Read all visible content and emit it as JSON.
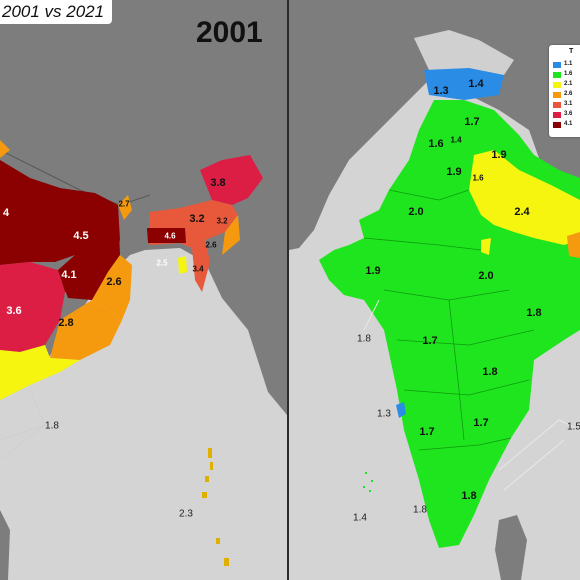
{
  "title": "2001 vs 2021",
  "left_map": {
    "year": "2001",
    "labels": [
      {
        "text": "4",
        "name": "left-edge-label"
      },
      {
        "text": "4.5",
        "name": "bihar-label"
      },
      {
        "text": "4.1",
        "name": "jharkhand-label"
      },
      {
        "text": "3.6",
        "name": "chhattisgarh-label"
      },
      {
        "text": "2.6",
        "name": "west-bengal-label"
      },
      {
        "text": "2.8",
        "name": "odisha-label"
      },
      {
        "text": "2.7",
        "name": "sikkim-label"
      },
      {
        "text": "3.8",
        "name": "arunachal-label"
      },
      {
        "text": "3.2",
        "name": "assam-label"
      },
      {
        "text": "3.2",
        "name": "nagaland-label"
      },
      {
        "text": "4.6",
        "name": "meghalaya-label"
      },
      {
        "text": "2.6",
        "name": "manipur-label"
      },
      {
        "text": "2.5",
        "name": "tripura-label"
      },
      {
        "text": "3.4",
        "name": "mizoram-label"
      },
      {
        "text": "1.8",
        "name": "kerala-callout-label"
      },
      {
        "text": "2.3",
        "name": "andaman-label"
      }
    ]
  },
  "right_map": {
    "labels": [
      {
        "text": "1.3",
        "name": "ladakh-west-label"
      },
      {
        "text": "1.4",
        "name": "ladakh-east-label"
      },
      {
        "text": "1.7",
        "name": "himachal-label"
      },
      {
        "text": "1.6",
        "name": "punjab-label"
      },
      {
        "text": "1.4",
        "name": "chandigarh-label"
      },
      {
        "text": "1.9",
        "name": "uttarakhand-label"
      },
      {
        "text": "1.9",
        "name": "haryana-label"
      },
      {
        "text": "1.6",
        "name": "delhi-label"
      },
      {
        "text": "2.0",
        "name": "rajasthan-label"
      },
      {
        "text": "2.4",
        "name": "uttar-pradesh-label"
      },
      {
        "text": "1.9",
        "name": "gujarat-label"
      },
      {
        "text": "2.0",
        "name": "madhya-pradesh-label"
      },
      {
        "text": "1.8",
        "name": "chhattisgarh-2021-label"
      },
      {
        "text": "1.8",
        "name": "dnh-callout-label"
      },
      {
        "text": "1.7",
        "name": "maharashtra-label"
      },
      {
        "text": "1.8",
        "name": "telangana-label"
      },
      {
        "text": "1.3",
        "name": "goa-label"
      },
      {
        "text": "1.7",
        "name": "karnataka-label"
      },
      {
        "text": "1.7",
        "name": "andhra-label"
      },
      {
        "text": "1.5",
        "name": "right-callout-label"
      },
      {
        "text": "1.8",
        "name": "tamil-nadu-label"
      },
      {
        "text": "1.8",
        "name": "puducherry-callout-label"
      },
      {
        "text": "1.4",
        "name": "lakshadweep-label"
      }
    ],
    "legend": {
      "title": "T",
      "items": [
        {
          "text": "1.1",
          "color": "#2b8ce6"
        },
        {
          "text": "1.6",
          "color": "#1ee51e"
        },
        {
          "text": "2.1",
          "color": "#f5f50f"
        },
        {
          "text": "2.6",
          "color": "#f59a0f"
        },
        {
          "text": "3.1",
          "color": "#e8583a"
        },
        {
          "text": "3.6",
          "color": "#dc1e45"
        },
        {
          "text": "4.1",
          "color": "#8b0000"
        }
      ]
    }
  },
  "colors": {
    "background": "#c9c9c9",
    "dark_land": "#7d7d7d",
    "sea": "#d4d4d4",
    "blue": "#2b8ce6",
    "green": "#1ee51e",
    "yellow": "#f5f50f",
    "orange": "#f59a0f",
    "coral": "#e8583a",
    "crimson": "#dc1e45",
    "maroon": "#8b0000"
  }
}
